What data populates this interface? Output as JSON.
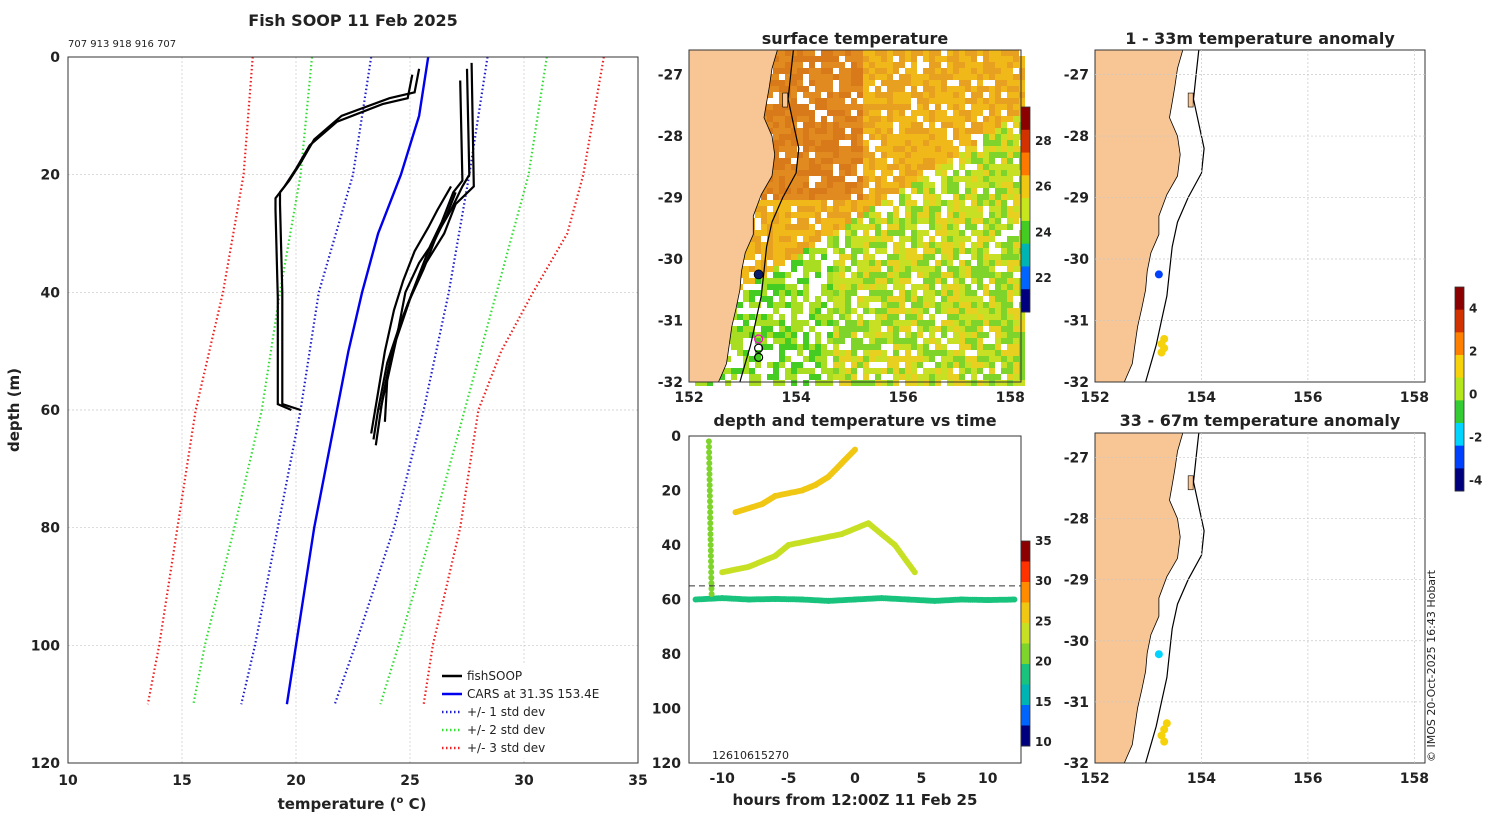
{
  "page": {
    "copyright": "© IMOS 20-Oct-2025 16:43 Hobart"
  },
  "colors": {
    "land": "#f8c594",
    "profile": "#000000",
    "cars": "#0000ee",
    "std1": "#1f1fcc",
    "std2": "#33dd33",
    "std3": "#ee2222",
    "sst_warm": "#e07a1e",
    "sst_mid": "#f0c814",
    "sst_cool": "#44cc22"
  },
  "chart_data": [
    {
      "id": "profile",
      "type": "line",
      "title": "Fish SOOP 11 Feb 2025",
      "subtitle": "707 913 918 916 707",
      "xlabel": "temperature (o C)",
      "xlabel_main": "temperature (",
      "xlabel_sup": "o",
      "xlabel_end": " C)",
      "ylabel": "depth (m)",
      "xlim": [
        10,
        35
      ],
      "ylim": [
        0,
        120
      ],
      "y_reversed": true,
      "xticks": [
        "10",
        "15",
        "20",
        "25",
        "30",
        "35"
      ],
      "yticks": [
        "0",
        "20",
        "40",
        "60",
        "80",
        "100",
        "120"
      ],
      "legend": {
        "position": "bottom-right",
        "entries": [
          "fishSOOP",
          "CARS at 31.3S 153.4E",
          "+/- 1 std dev",
          "+/- 2 std dev",
          "+/- 3 std dev"
        ]
      },
      "series": [
        {
          "name": "CARS at 31.3S 153.4E",
          "style": "solid",
          "color": "#0000ee",
          "depth": [
            0,
            10,
            20,
            30,
            40,
            50,
            60,
            70,
            80,
            90,
            100,
            110
          ],
          "temp": [
            25.8,
            25.4,
            24.6,
            23.6,
            22.9,
            22.3,
            21.8,
            21.3,
            20.8,
            20.4,
            20.0,
            19.6
          ]
        },
        {
          "name": "+1 std dev",
          "style": "dotted",
          "color": "#1f1fcc",
          "depth": [
            0,
            20,
            40,
            60,
            80,
            100,
            110
          ],
          "temp": [
            28.4,
            27.6,
            26.7,
            25.6,
            24.3,
            22.6,
            21.7
          ]
        },
        {
          "name": "-1 std dev",
          "style": "dotted",
          "color": "#1f1fcc",
          "depth": [
            0,
            20,
            40,
            60,
            80,
            100,
            110
          ],
          "temp": [
            23.3,
            22.5,
            21.0,
            20.2,
            19.2,
            18.2,
            17.6
          ]
        },
        {
          "name": "+2 std dev",
          "style": "dotted",
          "color": "#33dd33",
          "depth": [
            0,
            20,
            40,
            60,
            80,
            100,
            110
          ],
          "temp": [
            31.0,
            30.2,
            28.8,
            27.4,
            26.0,
            24.5,
            23.7
          ]
        },
        {
          "name": "-2 std dev",
          "style": "dotted",
          "color": "#33dd33",
          "depth": [
            0,
            20,
            40,
            60,
            80,
            100,
            110
          ],
          "temp": [
            20.7,
            20.2,
            19.3,
            18.5,
            17.3,
            16.0,
            15.5
          ]
        },
        {
          "name": "+3 std dev",
          "style": "dotted",
          "color": "#ee2222",
          "depth": [
            0,
            20,
            30,
            40,
            50,
            60,
            80,
            100,
            110
          ],
          "temp": [
            33.5,
            32.6,
            31.9,
            30.4,
            29.0,
            28.0,
            27.2,
            26.0,
            25.6
          ]
        },
        {
          "name": "-3 std dev",
          "style": "dotted",
          "color": "#ee2222",
          "depth": [
            0,
            20,
            40,
            60,
            80,
            100,
            110
          ],
          "temp": [
            18.1,
            17.7,
            16.8,
            15.6,
            14.8,
            14.0,
            13.5
          ]
        },
        {
          "name": "fishSOOP profile A",
          "style": "solid",
          "color": "#000000",
          "depth": [
            2,
            6,
            7,
            10,
            14,
            18,
            21,
            23,
            25,
            40,
            59,
            60
          ],
          "temp": [
            25.4,
            25.2,
            24.1,
            22.0,
            20.8,
            20.2,
            19.7,
            19.3,
            19.3,
            19.4,
            19.4,
            20.2
          ]
        },
        {
          "name": "fishSOOP profile B",
          "style": "solid",
          "color": "#000000",
          "depth": [
            3,
            7,
            8,
            11,
            15,
            19,
            22,
            24,
            26,
            41,
            59,
            60
          ],
          "temp": [
            25.1,
            24.9,
            23.8,
            21.8,
            20.6,
            20.0,
            19.5,
            19.1,
            19.1,
            19.2,
            19.2,
            19.8
          ]
        },
        {
          "name": "fishSOOP profile C",
          "style": "solid",
          "color": "#000000",
          "depth": [
            2,
            20,
            22,
            26,
            30,
            36,
            42,
            50,
            58,
            66
          ],
          "temp": [
            27.5,
            27.6,
            27.3,
            26.8,
            26.2,
            25.6,
            24.9,
            24.2,
            23.8,
            23.5
          ]
        },
        {
          "name": "fishSOOP profile D",
          "style": "solid",
          "color": "#000000",
          "depth": [
            4,
            21,
            23,
            28,
            32,
            38,
            45,
            52,
            60,
            65
          ],
          "temp": [
            27.2,
            27.3,
            26.9,
            26.4,
            25.9,
            25.3,
            24.6,
            24.0,
            23.6,
            23.4
          ]
        },
        {
          "name": "fishSOOP profile E",
          "style": "solid",
          "color": "#000000",
          "depth": [
            1,
            22,
            25,
            30,
            35,
            40,
            48,
            55,
            62
          ],
          "temp": [
            27.7,
            27.8,
            27.0,
            26.5,
            25.7,
            25.1,
            24.4,
            24.0,
            23.9
          ]
        },
        {
          "name": "fishSOOP profile F",
          "style": "solid",
          "color": "#000000",
          "depth": [
            22,
            26,
            29,
            33,
            38,
            43,
            50,
            57,
            64
          ],
          "temp": [
            26.8,
            26.2,
            25.8,
            25.2,
            24.7,
            24.3,
            23.9,
            23.6,
            23.3
          ]
        },
        {
          "name": "fishSOOP profile G",
          "style": "solid",
          "color": "#000000",
          "depth": [
            23,
            27,
            31,
            35,
            40,
            46,
            53,
            60
          ],
          "temp": [
            27.0,
            26.6,
            26.1,
            25.4,
            24.8,
            24.5,
            24.1,
            23.7
          ]
        }
      ]
    },
    {
      "id": "sst",
      "type": "heatmap",
      "title": "surface temperature",
      "xlim": [
        152,
        158.2
      ],
      "ylim": [
        -32,
        -26.6
      ],
      "xticks": [
        "152",
        "154",
        "156",
        "158"
      ],
      "yticks": [
        "-27",
        "-28",
        "-29",
        "-30",
        "-31",
        "-32"
      ],
      "colorbar": {
        "range": [
          20.5,
          29.5
        ],
        "ticks": [
          "22",
          "24",
          "26",
          "28"
        ]
      },
      "markers": [
        {
          "lon": 153.3,
          "lat": -30.25,
          "type": "filled",
          "color": "#0b1a6b"
        },
        {
          "lon": 153.3,
          "lat": -31.3,
          "type": "ring",
          "color": "#ff00cc"
        },
        {
          "lon": 153.3,
          "lat": -31.45,
          "type": "ring",
          "color": "#000000"
        },
        {
          "lon": 153.3,
          "lat": -31.6,
          "type": "ring",
          "color": "#000000"
        }
      ]
    },
    {
      "id": "timeseries",
      "type": "scatter",
      "title": "depth and temperature vs time",
      "xlabel": "hours from 12:00Z 11 Feb 25",
      "xlim": [
        -12.5,
        12.5
      ],
      "ylim": [
        0,
        120
      ],
      "y_reversed": true,
      "xticks": [
        "-10",
        "-5",
        "0",
        "5",
        "10"
      ],
      "yticks": [
        "0",
        "20",
        "40",
        "60",
        "80",
        "100",
        "120"
      ],
      "colorbar": {
        "range": [
          9.5,
          35
        ],
        "ticks": [
          "10",
          "15",
          "20",
          "25",
          "30",
          "35"
        ]
      },
      "reference_depth": 55,
      "annotation": "1261 605 1270",
      "annotation_text": "12610615270",
      "tracks": [
        {
          "name": "bottom",
          "temp": 20.5,
          "t": [
            -12,
            -10,
            -8,
            -6,
            -4,
            -2,
            0,
            2,
            4,
            6,
            8,
            10,
            12
          ],
          "depth": [
            60,
            59.5,
            60,
            59.8,
            60,
            60.5,
            60,
            59.5,
            60,
            60.5,
            60,
            60.2,
            60
          ]
        },
        {
          "name": "descent",
          "temp": 24.0,
          "t": [
            -11,
            -10.9,
            -10.8
          ],
          "depth": [
            2,
            30,
            58
          ]
        },
        {
          "name": "upper",
          "temp": 28.0,
          "t": [
            -10,
            -8,
            -6,
            -5,
            -3,
            -1,
            1,
            3,
            4.5
          ],
          "depth": [
            50,
            48,
            44,
            40,
            38,
            36,
            32,
            40,
            50
          ]
        },
        {
          "name": "shallow",
          "temp": 29.5,
          "t": [
            -9,
            -7,
            -6,
            -4,
            -3,
            -2,
            -1,
            0
          ],
          "depth": [
            28,
            25,
            22,
            20,
            18,
            15,
            10,
            5
          ]
        }
      ]
    },
    {
      "id": "anomaly_1_33",
      "type": "scatter",
      "title": "1 - 33m temperature anomaly",
      "xlim": [
        152,
        158.2
      ],
      "ylim": [
        -32,
        -26.6
      ],
      "xticks": [
        "152",
        "154",
        "156",
        "158"
      ],
      "yticks": [
        "-27",
        "-28",
        "-29",
        "-30",
        "-31",
        "-32"
      ],
      "points": [
        {
          "lon": 153.2,
          "lat": -30.25,
          "anomaly": -4.0
        },
        {
          "lon": 153.3,
          "lat": -31.3,
          "anomaly": 2.5
        },
        {
          "lon": 153.25,
          "lat": -31.38,
          "anomaly": 2.5
        },
        {
          "lon": 153.3,
          "lat": -31.45,
          "anomaly": 2.5
        },
        {
          "lon": 153.25,
          "lat": -31.52,
          "anomaly": 2.5
        }
      ]
    },
    {
      "id": "anomaly_33_67",
      "type": "scatter",
      "title": "33 - 67m temperature anomaly",
      "xlim": [
        152,
        158.2
      ],
      "ylim": [
        -32,
        -26.6
      ],
      "xticks": [
        "152",
        "154",
        "156",
        "158"
      ],
      "yticks": [
        "-27",
        "-28",
        "-29",
        "-30",
        "-31",
        "-32"
      ],
      "points": [
        {
          "lon": 153.2,
          "lat": -30.22,
          "anomaly": -1.5
        },
        {
          "lon": 153.35,
          "lat": -31.35,
          "anomaly": 2.5
        },
        {
          "lon": 153.3,
          "lat": -31.45,
          "anomaly": 2.5
        },
        {
          "lon": 153.25,
          "lat": -31.55,
          "anomaly": 2.5
        },
        {
          "lon": 153.3,
          "lat": -31.65,
          "anomaly": 2.5
        }
      ]
    },
    {
      "id": "anomaly_colorbar",
      "type": "heatmap",
      "range": [
        -4.5,
        5
      ],
      "ticks": [
        "4",
        "2",
        "0",
        "-2",
        "-4"
      ]
    }
  ]
}
